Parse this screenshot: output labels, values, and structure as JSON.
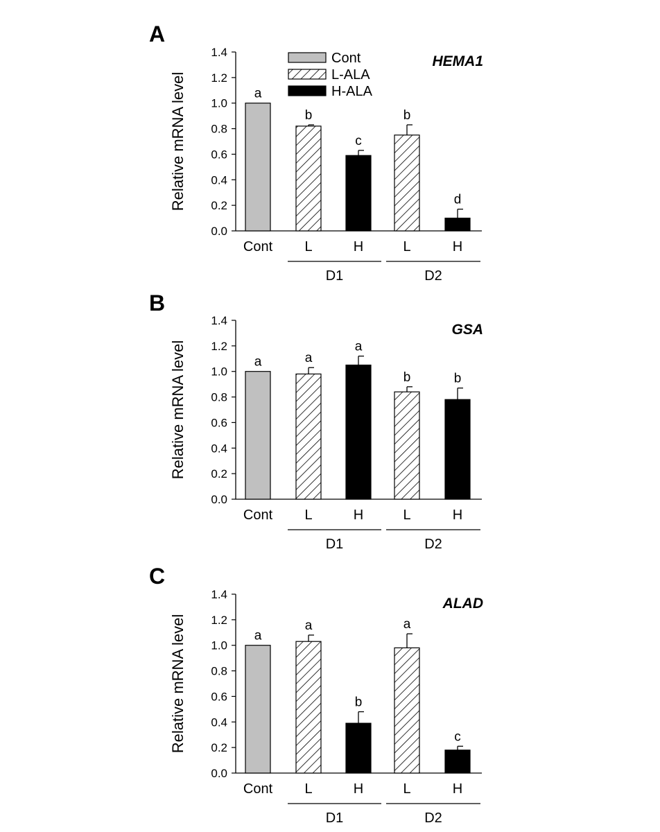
{
  "legend": [
    {
      "label": "Cont",
      "style": "gray"
    },
    {
      "label": "L-ALA",
      "style": "hatch"
    },
    {
      "label": "H-ALA",
      "style": "black"
    }
  ],
  "colors": {
    "control": "#c0c0c0",
    "high": "#000000",
    "hatch_line": "#000000",
    "axis": "#000000"
  },
  "chart_data": [
    {
      "type": "bar",
      "panel": "A",
      "title": "HEMA1",
      "ylabel": "Relative mRNA level",
      "ylim": [
        0,
        1.4
      ],
      "yticks": [
        "0.0",
        "0.2",
        "0.4",
        "0.6",
        "0.8",
        "1.0",
        "1.2",
        "1.4"
      ],
      "categories": [
        "Cont",
        "L",
        "H",
        "L",
        "H"
      ],
      "groups": [
        {
          "label": "D1",
          "categories": [
            1,
            2
          ]
        },
        {
          "label": "D2",
          "categories": [
            3,
            4
          ]
        }
      ],
      "bar_styles": [
        "gray",
        "hatch",
        "black",
        "hatch",
        "black"
      ],
      "values": [
        1.0,
        0.82,
        0.59,
        0.75,
        0.1
      ],
      "errors": [
        0.0,
        0.01,
        0.04,
        0.08,
        0.07
      ],
      "significance": [
        "a",
        "b",
        "c",
        "b",
        "d"
      ],
      "grid": false
    },
    {
      "type": "bar",
      "panel": "B",
      "title": "GSA",
      "ylabel": "Relative mRNA level",
      "ylim": [
        0,
        1.4
      ],
      "yticks": [
        "0.0",
        "0.2",
        "0.4",
        "0.6",
        "0.8",
        "1.0",
        "1.2",
        "1.4"
      ],
      "categories": [
        "Cont",
        "L",
        "H",
        "L",
        "H"
      ],
      "groups": [
        {
          "label": "D1",
          "categories": [
            1,
            2
          ]
        },
        {
          "label": "D2",
          "categories": [
            3,
            4
          ]
        }
      ],
      "bar_styles": [
        "gray",
        "hatch",
        "black",
        "hatch",
        "black"
      ],
      "values": [
        1.0,
        0.98,
        1.05,
        0.84,
        0.78
      ],
      "errors": [
        0.0,
        0.05,
        0.07,
        0.04,
        0.09
      ],
      "significance": [
        "a",
        "a",
        "a",
        "b",
        "b"
      ],
      "grid": false
    },
    {
      "type": "bar",
      "panel": "C",
      "title": "ALAD",
      "ylabel": "Relative mRNA level",
      "ylim": [
        0,
        1.4
      ],
      "yticks": [
        "0.0",
        "0.2",
        "0.4",
        "0.6",
        "0.8",
        "1.0",
        "1.2",
        "1.4"
      ],
      "categories": [
        "Cont",
        "L",
        "H",
        "L",
        "H"
      ],
      "groups": [
        {
          "label": "D1",
          "categories": [
            1,
            2
          ]
        },
        {
          "label": "D2",
          "categories": [
            3,
            4
          ]
        }
      ],
      "bar_styles": [
        "gray",
        "hatch",
        "black",
        "hatch",
        "black"
      ],
      "values": [
        1.0,
        1.03,
        0.39,
        0.98,
        0.18
      ],
      "errors": [
        0.0,
        0.05,
        0.09,
        0.11,
        0.03
      ],
      "significance": [
        "a",
        "a",
        "b",
        "a",
        "c"
      ],
      "grid": false
    }
  ]
}
